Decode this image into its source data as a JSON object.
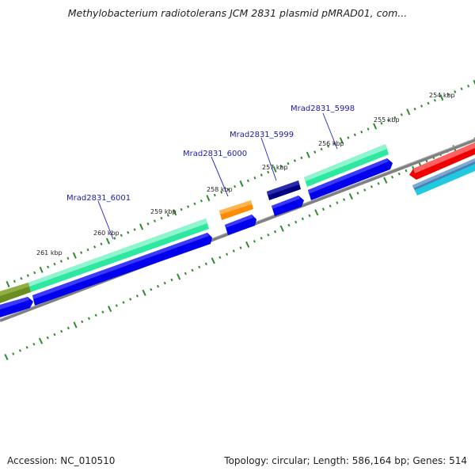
{
  "title": "Methylobacterium radiotolerans JCM 2831 plasmid pMRAD01, com...",
  "footer": {
    "accession": "Accession: NC_010510",
    "summary": "Topology: circular; Length: 586,164 bp; Genes: 514"
  },
  "scale_labels": [
    "254 kbp",
    "255 kbp",
    "256 kbp",
    "257 kbp",
    "258 kbp",
    "259 kbp",
    "260 kbp",
    "261 kbp"
  ],
  "gene_labels": [
    "Mrad2831_5998",
    "Mrad2831_5999",
    "Mrad2831_6000",
    "Mrad2831_6001"
  ],
  "colors": {
    "backbone": "#808080",
    "tick": "#2e8b2e",
    "label_line": "#3333cc",
    "cds_blue": "#0000ee",
    "gene_green": "#33e8a0",
    "gene_olive": "#6b8e23",
    "gene_orange": "#ff8c00",
    "gene_navy": "#000080",
    "gene_red": "#ee0000",
    "gene_steel": "#4682b4",
    "gene_cyan": "#20c8e0"
  }
}
